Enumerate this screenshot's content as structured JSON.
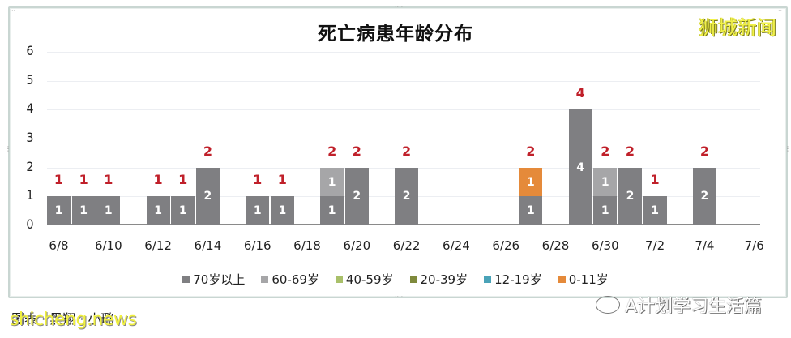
{
  "brand": "狮城新闻",
  "caption": "图表 · 黑翔 · 小璐",
  "caption_watermark": "shicheng.news",
  "footer_watermark": "A计划学习生活篇",
  "chart_data": {
    "type": "bar",
    "stacked": true,
    "title": "死亡病患年龄分布",
    "xlabel": "",
    "ylabel": "",
    "ylim": [
      0,
      6
    ],
    "yticks": [
      0,
      1,
      2,
      3,
      4,
      5,
      6
    ],
    "grid": true,
    "legend_position": "bottom",
    "categories": [
      "6/8",
      "6/9",
      "6/10",
      "6/11",
      "6/12",
      "6/13",
      "6/14",
      "6/15",
      "6/16",
      "6/17",
      "6/18",
      "6/19",
      "6/20",
      "6/21",
      "6/22",
      "6/23",
      "6/24",
      "6/25",
      "6/26",
      "6/27",
      "6/28",
      "6/29",
      "6/30",
      "7/1",
      "7/2",
      "7/3",
      "7/4",
      "7/5",
      "7/6"
    ],
    "x_tick_labels": [
      "6/8",
      "6/10",
      "6/12",
      "6/14",
      "6/16",
      "6/18",
      "6/20",
      "6/22",
      "6/24",
      "6/26",
      "6/28",
      "6/30",
      "7/2",
      "7/4",
      "7/6"
    ],
    "series": [
      {
        "name": "70岁以上",
        "color": "#7f7f82",
        "values": [
          1,
          1,
          1,
          0,
          1,
          1,
          2,
          0,
          1,
          1,
          0,
          1,
          2,
          0,
          2,
          0,
          0,
          0,
          0,
          1,
          0,
          4,
          1,
          2,
          1,
          0,
          2,
          0,
          0
        ]
      },
      {
        "name": "60-69岁",
        "color": "#a6a6a8",
        "values": [
          0,
          0,
          0,
          0,
          0,
          0,
          0,
          0,
          0,
          0,
          0,
          1,
          0,
          0,
          0,
          0,
          0,
          0,
          0,
          0,
          0,
          0,
          1,
          0,
          0,
          0,
          0,
          0,
          0
        ]
      },
      {
        "name": "40-59岁",
        "color": "#a9c06a",
        "values": [
          0,
          0,
          0,
          0,
          0,
          0,
          0,
          0,
          0,
          0,
          0,
          0,
          0,
          0,
          0,
          0,
          0,
          0,
          0,
          0,
          0,
          0,
          0,
          0,
          0,
          0,
          0,
          0,
          0
        ]
      },
      {
        "name": "20-39岁",
        "color": "#7f8a3c",
        "values": [
          0,
          0,
          0,
          0,
          0,
          0,
          0,
          0,
          0,
          0,
          0,
          0,
          0,
          0,
          0,
          0,
          0,
          0,
          0,
          0,
          0,
          0,
          0,
          0,
          0,
          0,
          0,
          0,
          0
        ]
      },
      {
        "name": "12-19岁",
        "color": "#4aa3b8",
        "values": [
          0,
          0,
          0,
          0,
          0,
          0,
          0,
          0,
          0,
          0,
          0,
          0,
          0,
          0,
          0,
          0,
          0,
          0,
          0,
          0,
          0,
          0,
          0,
          0,
          0,
          0,
          0,
          0,
          0
        ]
      },
      {
        "name": "0-11岁",
        "color": "#e58a3a",
        "values": [
          0,
          0,
          0,
          0,
          0,
          0,
          0,
          0,
          0,
          0,
          0,
          0,
          0,
          0,
          0,
          0,
          0,
          0,
          0,
          1,
          0,
          0,
          0,
          0,
          0,
          0,
          0,
          0,
          0
        ]
      }
    ],
    "totals": [
      1,
      1,
      1,
      0,
      1,
      1,
      2,
      0,
      1,
      1,
      0,
      2,
      2,
      0,
      2,
      0,
      0,
      0,
      0,
      2,
      0,
      4,
      2,
      2,
      1,
      0,
      2,
      0,
      0
    ],
    "total_label_color": "#c0202a"
  }
}
